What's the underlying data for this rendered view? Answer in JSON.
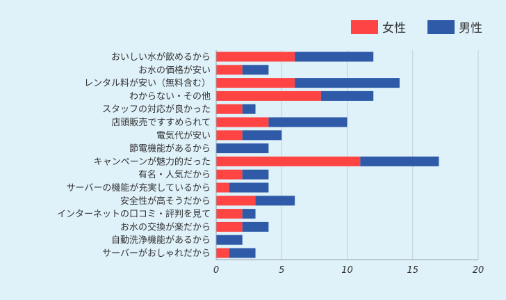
{
  "chart_data": {
    "type": "bar",
    "orientation": "horizontal",
    "stacked": true,
    "categories": [
      "おいしい水が飲めるから",
      "お水の価格が安い",
      "レンタル料が安い（無料含む）",
      "わからない・その他",
      "スタッフの対応が良かった",
      "店頭販売ですすめられて",
      "電気代が安い",
      "節電機能があるから",
      "キャンペーンが魅力的だった",
      "有名・人気だから",
      "サーバーの機能が充実しているから",
      "安全性が高そうだから",
      "インターネットの口コミ・評判を見て",
      "お水の交換が楽だから",
      "自動洗浄機能があるから",
      "サーバーがおしゃれだから"
    ],
    "series": [
      {
        "name": "女性",
        "color": "#ff4444",
        "values": [
          6,
          2,
          6,
          8,
          2,
          4,
          2,
          0,
          11,
          2,
          1,
          3,
          2,
          2,
          0,
          1
        ]
      },
      {
        "name": "男性",
        "color": "#2e5aa8",
        "values": [
          6,
          2,
          8,
          4,
          1,
          6,
          3,
          4,
          6,
          2,
          3,
          3,
          1,
          2,
          2,
          2
        ]
      }
    ],
    "xlim": [
      0,
      20
    ],
    "xticks": [
      "0",
      "5",
      "10",
      "15",
      "20"
    ],
    "grid": true,
    "legend": "top-right"
  }
}
